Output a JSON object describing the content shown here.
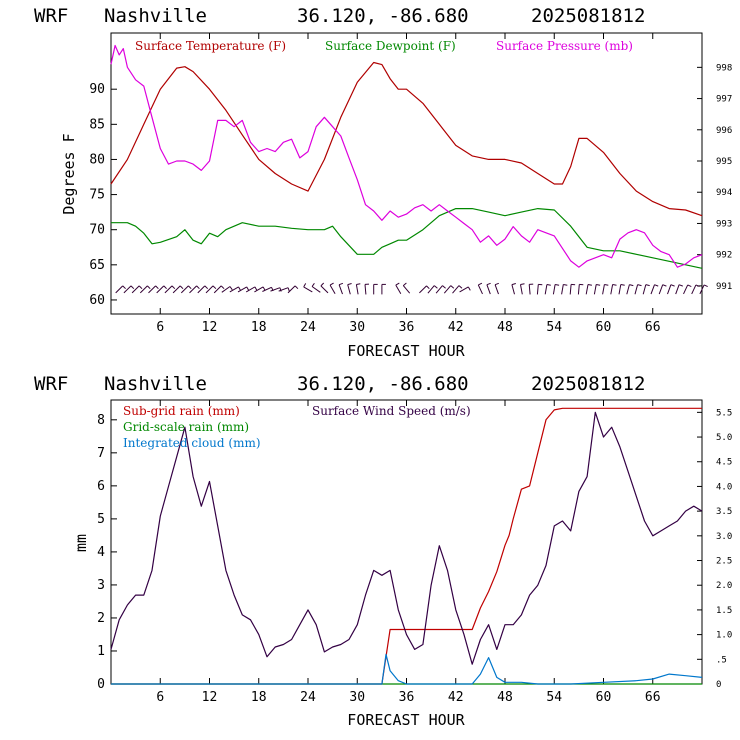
{
  "panels": [
    {
      "header": {
        "model": "WRF",
        "station": "Nashville",
        "coords": "36.120, -86.680",
        "run": "2025081812"
      },
      "xlabel": "FORECAST HOUR",
      "ylabel": "Degrees F"
    },
    {
      "header": {
        "model": "WRF",
        "station": "Nashville",
        "coords": "36.120, -86.680",
        "run": "2025081812"
      },
      "xlabel": "FORECAST HOUR",
      "ylabel": "mm"
    }
  ],
  "chart_data": [
    {
      "type": "line",
      "xlim": [
        0,
        72
      ],
      "x_ticks": [
        6,
        12,
        18,
        24,
        30,
        36,
        42,
        48,
        54,
        60,
        66
      ],
      "left_axis": {
        "ylim": [
          58,
          98
        ],
        "ticks": [
          60,
          65,
          70,
          75,
          80,
          85,
          90
        ]
      },
      "right_axis": {
        "ylim": [
          990.1,
          999.1
        ],
        "ticks": [
          991,
          992,
          993,
          994,
          995,
          996,
          997,
          998
        ]
      },
      "colors": {
        "temperature": "#b00000",
        "dewpoint": "#008800",
        "pressure": "#dd00dd",
        "wind_barbs": "#330033"
      },
      "series": [
        {
          "name": "Surface Temperature (F)",
          "axis": "left",
          "key": "temperature",
          "x": [
            0,
            2,
            4,
            6,
            8,
            9,
            10,
            12,
            14,
            16,
            18,
            20,
            22,
            24,
            26,
            28,
            30,
            32,
            33,
            34,
            35,
            36,
            38,
            40,
            42,
            44,
            46,
            48,
            50,
            52,
            54,
            55,
            56,
            57,
            58,
            60,
            62,
            64,
            66,
            68,
            70,
            72
          ],
          "y": [
            76.5,
            80,
            85,
            90,
            93,
            93.2,
            92.5,
            90,
            87,
            83.5,
            80,
            78,
            76.5,
            75.5,
            80,
            86,
            91,
            93.8,
            93.5,
            91.5,
            90,
            90,
            88,
            85,
            82,
            80.5,
            80,
            80,
            79.5,
            78,
            76.5,
            76.5,
            79,
            83,
            83,
            81,
            78,
            75.5,
            74,
            73,
            72.8,
            72
          ]
        },
        {
          "name": "Surface Dewpoint (F)",
          "axis": "left",
          "key": "dewpoint",
          "x": [
            0,
            2,
            3,
            4,
            5,
            6,
            8,
            9,
            10,
            11,
            12,
            13,
            14,
            16,
            18,
            20,
            22,
            24,
            26,
            27,
            28,
            30,
            32,
            33,
            34,
            35,
            36,
            38,
            40,
            42,
            44,
            46,
            48,
            50,
            52,
            54,
            56,
            58,
            60,
            62,
            64,
            66,
            68,
            70,
            72
          ],
          "y": [
            71,
            71,
            70.5,
            69.5,
            68,
            68.2,
            69,
            70,
            68.5,
            68,
            69.5,
            69,
            70,
            71,
            70.5,
            70.5,
            70.2,
            70,
            70,
            70.5,
            69,
            66.5,
            66.5,
            67.5,
            68,
            68.5,
            68.5,
            70,
            72,
            73,
            73,
            72.5,
            72,
            72.5,
            73,
            72.8,
            70.5,
            67.5,
            67,
            67,
            66.5,
            66,
            65.5,
            65,
            64.5
          ]
        },
        {
          "name": "Surface Pressure (mb)",
          "axis": "right",
          "key": "pressure",
          "x": [
            0,
            0.5,
            1,
            1.5,
            2,
            3,
            4,
            5,
            6,
            7,
            8,
            9,
            10,
            11,
            12,
            13,
            14,
            15,
            16,
            17,
            18,
            19,
            20,
            21,
            22,
            23,
            24,
            25,
            26,
            27,
            28,
            29,
            30,
            31,
            32,
            33,
            34,
            35,
            36,
            37,
            38,
            39,
            40,
            41,
            42,
            43,
            44,
            45,
            46,
            47,
            48,
            49,
            50,
            51,
            52,
            53,
            54,
            55,
            56,
            57,
            58,
            59,
            60,
            61,
            62,
            63,
            64,
            65,
            66,
            67,
            68,
            69,
            70,
            71,
            72
          ],
          "y": [
            998.1,
            998.7,
            998.4,
            998.6,
            998.0,
            997.6,
            997.4,
            996.4,
            995.4,
            994.9,
            995.0,
            995.0,
            994.9,
            994.7,
            995.0,
            996.3,
            996.3,
            996.1,
            996.3,
            995.6,
            995.3,
            995.4,
            995.3,
            995.6,
            995.7,
            995.1,
            995.3,
            996.1,
            996.4,
            996.1,
            995.8,
            995.1,
            994.4,
            993.6,
            993.4,
            993.1,
            993.4,
            993.2,
            993.3,
            993.5,
            993.6,
            993.4,
            993.6,
            993.4,
            993.2,
            993.0,
            992.8,
            992.4,
            992.6,
            992.3,
            992.5,
            992.9,
            992.6,
            992.4,
            992.8,
            992.7,
            992.6,
            992.2,
            991.8,
            991.6,
            991.8,
            991.9,
            992.0,
            991.9,
            992.5,
            992.7,
            992.8,
            992.7,
            992.3,
            992.1,
            992.0,
            991.6,
            991.7,
            991.9,
            992.0
          ]
        }
      ],
      "legend": [
        "Surface Temperature (F)",
        "Surface Dewpoint (F)",
        "Surface Pressure (mb)"
      ],
      "legend_placement": "top",
      "wind_barbs": {
        "hours": [
          1,
          2,
          3,
          4,
          5,
          6,
          7,
          8,
          9,
          10,
          11,
          12,
          13,
          14,
          15,
          16,
          17,
          18,
          19,
          20,
          21,
          22,
          24,
          25,
          26,
          27,
          28,
          29,
          30,
          31,
          32,
          33,
          35,
          36,
          38,
          39,
          40,
          41,
          42,
          43,
          45,
          46,
          47,
          49,
          50,
          51,
          52,
          53,
          54,
          55,
          56,
          57,
          58,
          59,
          60,
          61,
          62,
          63,
          64,
          65,
          66,
          67,
          68,
          69,
          70,
          71,
          72
        ],
        "angles": [
          45,
          45,
          45,
          45,
          45,
          45,
          45,
          45,
          45,
          45,
          45,
          45,
          45,
          55,
          60,
          60,
          60,
          60,
          65,
          70,
          70,
          45,
          -60,
          -55,
          -45,
          -30,
          -20,
          -15,
          -10,
          -5,
          0,
          0,
          -30,
          -40,
          45,
          40,
          40,
          40,
          40,
          60,
          -25,
          -20,
          -20,
          -15,
          -10,
          -5,
          5,
          10,
          10,
          10,
          5,
          5,
          10,
          10,
          10,
          10,
          10,
          15,
          15,
          15,
          20,
          20,
          20,
          20,
          25,
          25,
          25
        ]
      }
    },
    {
      "type": "line",
      "xlim": [
        0,
        72
      ],
      "x_ticks": [
        6,
        12,
        18,
        24,
        30,
        36,
        42,
        48,
        54,
        60,
        66
      ],
      "left_axis": {
        "ylim": [
          0,
          8.6
        ],
        "ticks": [
          0,
          1,
          2,
          3,
          4,
          5,
          6,
          7,
          8
        ]
      },
      "right_axis": {
        "ylim": [
          0,
          5.75
        ],
        "ticks": [
          "0",
          ".5",
          "1.0",
          "1.5",
          "2.0",
          "2.5",
          "3.0",
          "3.5",
          "4.0",
          "4.5",
          "5.0",
          "5.5"
        ]
      },
      "colors": {
        "subgrid": "#c00000",
        "gridscale": "#008800",
        "cloud": "#0077cc",
        "wind": "#330044"
      },
      "series": [
        {
          "name": "Sub-grid rain (mm)",
          "axis": "left",
          "key": "subgrid",
          "x": [
            0,
            33,
            34,
            44,
            45,
            46,
            47,
            48,
            48.5,
            49,
            50,
            51,
            51.5,
            52,
            53,
            54,
            55,
            72
          ],
          "y": [
            0,
            0,
            1.65,
            1.65,
            2.3,
            2.8,
            3.4,
            4.2,
            4.5,
            5,
            5.9,
            6,
            6.5,
            7,
            8,
            8.3,
            8.35,
            8.35
          ]
        },
        {
          "name": "Grid-scale rain (mm)",
          "axis": "left",
          "key": "gridscale",
          "x": [
            0,
            72
          ],
          "y": [
            0,
            0
          ]
        },
        {
          "name": "Integrated cloud (mm)",
          "axis": "left",
          "key": "cloud",
          "x": [
            0,
            32,
            33,
            33.5,
            34,
            35,
            36,
            44,
            45,
            46,
            46.5,
            47,
            48,
            49,
            50,
            52,
            56,
            60,
            64,
            66,
            68,
            70,
            72
          ],
          "y": [
            0,
            0,
            0,
            0.9,
            0.4,
            0.1,
            0,
            0,
            0.3,
            0.8,
            0.5,
            0.2,
            0.05,
            0.05,
            0.05,
            0,
            0,
            0.05,
            0.1,
            0.15,
            0.3,
            0.25,
            0.2
          ]
        },
        {
          "name": "Surface Wind Speed (m/s)",
          "axis": "right",
          "key": "wind",
          "x": [
            0,
            1,
            2,
            3,
            4,
            5,
            6,
            7,
            8,
            9,
            10,
            11,
            12,
            13,
            14,
            15,
            16,
            17,
            18,
            19,
            20,
            21,
            22,
            23,
            24,
            25,
            26,
            27,
            28,
            29,
            30,
            31,
            32,
            33,
            34,
            35,
            36,
            37,
            38,
            39,
            40,
            41,
            42,
            43,
            44,
            45,
            46,
            47,
            48,
            49,
            50,
            51,
            52,
            53,
            54,
            55,
            56,
            57,
            58,
            59,
            60,
            61,
            62,
            63,
            64,
            65,
            66,
            67,
            68,
            69,
            70,
            71,
            72
          ],
          "y": [
            0.7,
            1.3,
            1.6,
            1.8,
            1.8,
            2.3,
            3.4,
            4.0,
            4.6,
            5.2,
            4.2,
            3.6,
            4.1,
            3.2,
            2.3,
            1.8,
            1.4,
            1.3,
            1.0,
            0.55,
            0.75,
            0.8,
            0.9,
            1.2,
            1.5,
            1.2,
            0.65,
            0.75,
            0.8,
            0.9,
            1.2,
            1.8,
            2.3,
            2.2,
            2.3,
            1.5,
            1.0,
            0.7,
            0.8,
            2.0,
            2.8,
            2.3,
            1.5,
            1.0,
            0.4,
            0.9,
            1.2,
            0.7,
            1.2,
            1.2,
            1.4,
            1.8,
            2.0,
            2.4,
            3.2,
            3.3,
            3.1,
            3.9,
            4.2,
            5.5,
            5.0,
            5.2,
            4.8,
            4.3,
            3.8,
            3.3,
            3.0,
            3.1,
            3.2,
            3.3,
            3.5,
            3.6,
            3.5
          ]
        }
      ],
      "legend": [
        "Sub-grid rain (mm)",
        "Grid-scale rain (mm)",
        "Integrated cloud (mm)",
        "Surface Wind Speed (m/s)"
      ],
      "legend_placement": "top-left"
    }
  ]
}
